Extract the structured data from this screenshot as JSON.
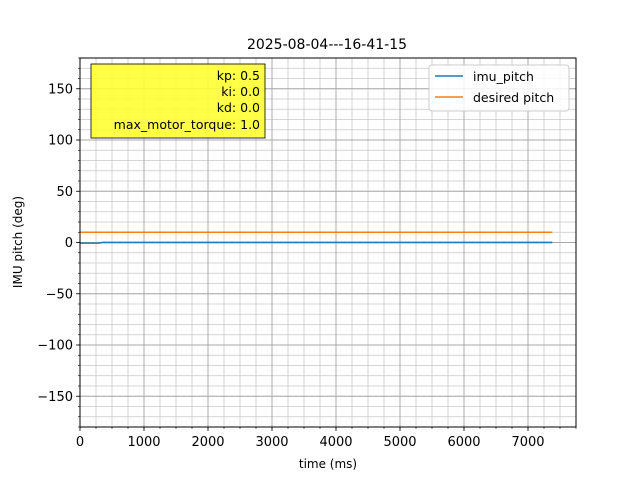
{
  "chart_data": {
    "type": "line",
    "title": "2025-08-04---16-41-15",
    "xlabel": "time (ms)",
    "ylabel": "IMU pitch (deg)",
    "xlim": [
      0,
      7750
    ],
    "ylim": [
      -180,
      180
    ],
    "x_ticks": [
      0,
      1000,
      2000,
      3000,
      4000,
      5000,
      6000,
      7000
    ],
    "y_ticks": [
      -150,
      -100,
      -50,
      0,
      50,
      100,
      150
    ],
    "x_minor_step": 250,
    "y_minor_step": 10,
    "grid": "major and minor",
    "legend_position": "top-right",
    "series": [
      {
        "name": "imu_pitch",
        "color": "#1f77b4",
        "x": [
          0,
          300,
          360,
          420,
          7380
        ],
        "y": [
          -0.6,
          -0.6,
          0.1,
          0.1,
          0.1
        ]
      },
      {
        "name": "desired pitch",
        "color": "#ff7f0e",
        "x": [
          0,
          7380
        ],
        "y": [
          10,
          10
        ]
      }
    ],
    "annotation": {
      "position": "top-left",
      "background": "#ffff33",
      "lines": [
        "kp: 0.5",
        "ki: 0.0",
        "kd: 0.0",
        "max_motor_torque: 1.0"
      ]
    }
  }
}
